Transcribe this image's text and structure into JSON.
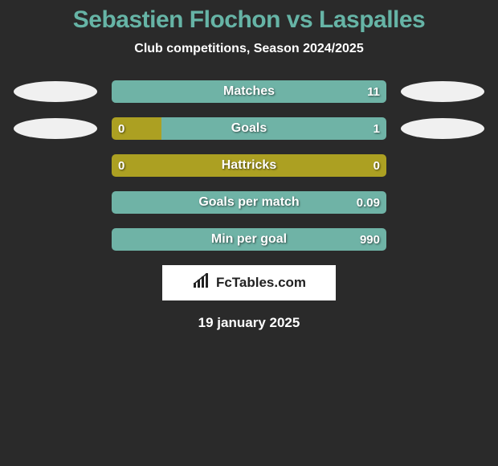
{
  "colors": {
    "background": "#2a2a2a",
    "title": "#66b4a6",
    "subtitle": "#ffffff",
    "left": "#aca022",
    "right": "#6fb3a6",
    "ellipse_left": "#f0f0f0",
    "ellipse_right": "#f0f0f0",
    "logo_text": "#222222",
    "logo_bg": "#ffffff",
    "date": "#ffffff"
  },
  "title": {
    "text": "Sebastien Flochon vs Laspalles",
    "fontsize": 30
  },
  "subtitle": {
    "text": "Club competitions, Season 2024/2025",
    "fontsize": 16
  },
  "stats": [
    {
      "label": "Matches",
      "left_val": "",
      "right_val": "11",
      "left_pct": 0,
      "right_pct": 100,
      "show_ellipses": true
    },
    {
      "label": "Goals",
      "left_val": "0",
      "right_val": "1",
      "left_pct": 18,
      "right_pct": 82,
      "show_ellipses": true
    },
    {
      "label": "Hattricks",
      "left_val": "0",
      "right_val": "0",
      "left_pct": 100,
      "right_pct": 0,
      "show_ellipses": false
    },
    {
      "label": "Goals per match",
      "left_val": "",
      "right_val": "0.09",
      "left_pct": 0,
      "right_pct": 100,
      "show_ellipses": false
    },
    {
      "label": "Min per goal",
      "left_val": "",
      "right_val": "990",
      "left_pct": 0,
      "right_pct": 100,
      "show_ellipses": false
    }
  ],
  "bar": {
    "label_fontsize": 16,
    "value_fontsize": 15
  },
  "logo": {
    "text": "FcTables.com"
  },
  "date": {
    "text": "19 january 2025",
    "fontsize": 17
  }
}
